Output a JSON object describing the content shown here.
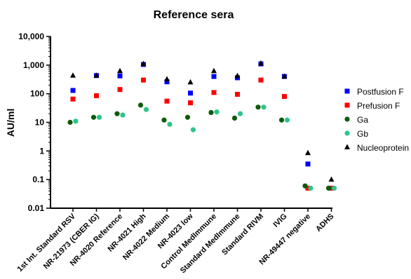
{
  "chart_data": {
    "type": "scatter",
    "title": "Reference sera",
    "xlabel": "",
    "ylabel": "AU/ml",
    "yscale": "log",
    "ylim": [
      0.01,
      10000
    ],
    "ytick_labels": [
      "0.01",
      "0.1",
      "1",
      "10",
      "100",
      "1,000",
      "10,000"
    ],
    "grid": false,
    "legend_position": "right",
    "categories": [
      "1st Int. Standard RSV",
      "NR-21973 (CBER IG)",
      "NR-4020 Reference",
      "NR-4021 High",
      "NR-4022 Medium",
      "NR-4023 low",
      "Control MedImmune",
      "Standard MedImmune",
      "Standard RIVM",
      "IVIG",
      "NR-49447 negative",
      "ADHS"
    ],
    "series": [
      {
        "name": "Postfusion F",
        "color": "#0000ff",
        "marker": "square",
        "values": [
          130,
          430,
          420,
          1050,
          260,
          105,
          400,
          360,
          1100,
          400,
          0.35,
          0.05
        ]
      },
      {
        "name": "Prefusion F",
        "color": "#ff0000",
        "marker": "square",
        "values": [
          65,
          85,
          140,
          300,
          55,
          48,
          110,
          95,
          300,
          80,
          0.05,
          0.05
        ]
      },
      {
        "name": "Ga",
        "color": "#0a5c0a",
        "marker": "circle",
        "values": [
          10,
          15,
          20,
          40,
          12,
          15,
          22,
          14,
          34,
          12,
          0.06,
          0.05
        ]
      },
      {
        "name": "Gb",
        "color": "#2ec48a",
        "marker": "circle",
        "values": [
          11,
          15,
          18,
          28,
          8.5,
          5.5,
          23,
          20,
          34,
          12,
          0.05,
          0.05
        ]
      },
      {
        "name": "Nucleoprotein",
        "color": "#000000",
        "marker": "triangle",
        "values": [
          430,
          430,
          620,
          1100,
          320,
          250,
          620,
          420,
          1150,
          400,
          0.85,
          0.1
        ]
      }
    ]
  }
}
